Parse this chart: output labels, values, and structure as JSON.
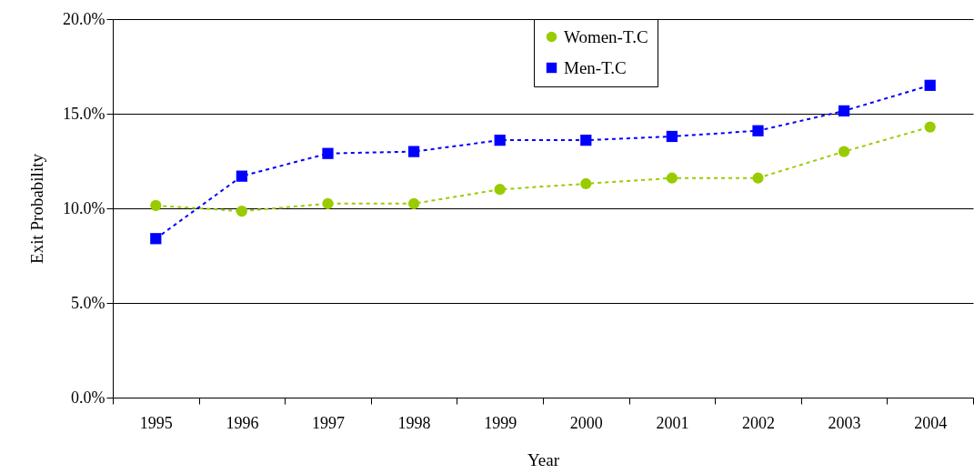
{
  "chart_data": {
    "type": "line",
    "xlabel": "Year",
    "ylabel": "Exit Probability",
    "categories": [
      "1995",
      "1996",
      "1997",
      "1998",
      "1999",
      "2000",
      "2001",
      "2002",
      "2003",
      "2004"
    ],
    "series": [
      {
        "name": "Women-T.C",
        "color": "#99cc00",
        "marker": "circle",
        "values": [
          10.15,
          9.85,
          10.25,
          10.25,
          11.0,
          11.3,
          11.6,
          11.6,
          13.0,
          14.3
        ]
      },
      {
        "name": "Men-T.C",
        "color": "#0000ff",
        "marker": "square",
        "values": [
          8.4,
          11.7,
          12.9,
          13.0,
          13.6,
          13.6,
          13.8,
          14.1,
          15.15,
          16.5
        ]
      }
    ],
    "ylim": [
      0,
      20
    ],
    "yticks": [
      {
        "value": 0,
        "label": "0.0%"
      },
      {
        "value": 5,
        "label": "5.0%"
      },
      {
        "value": 10,
        "label": "10.0%"
      },
      {
        "value": 15,
        "label": "15.0%"
      },
      {
        "value": 20,
        "label": "20.0%"
      }
    ],
    "grid": "y",
    "legend": "top",
    "line_style": "dashed"
  }
}
